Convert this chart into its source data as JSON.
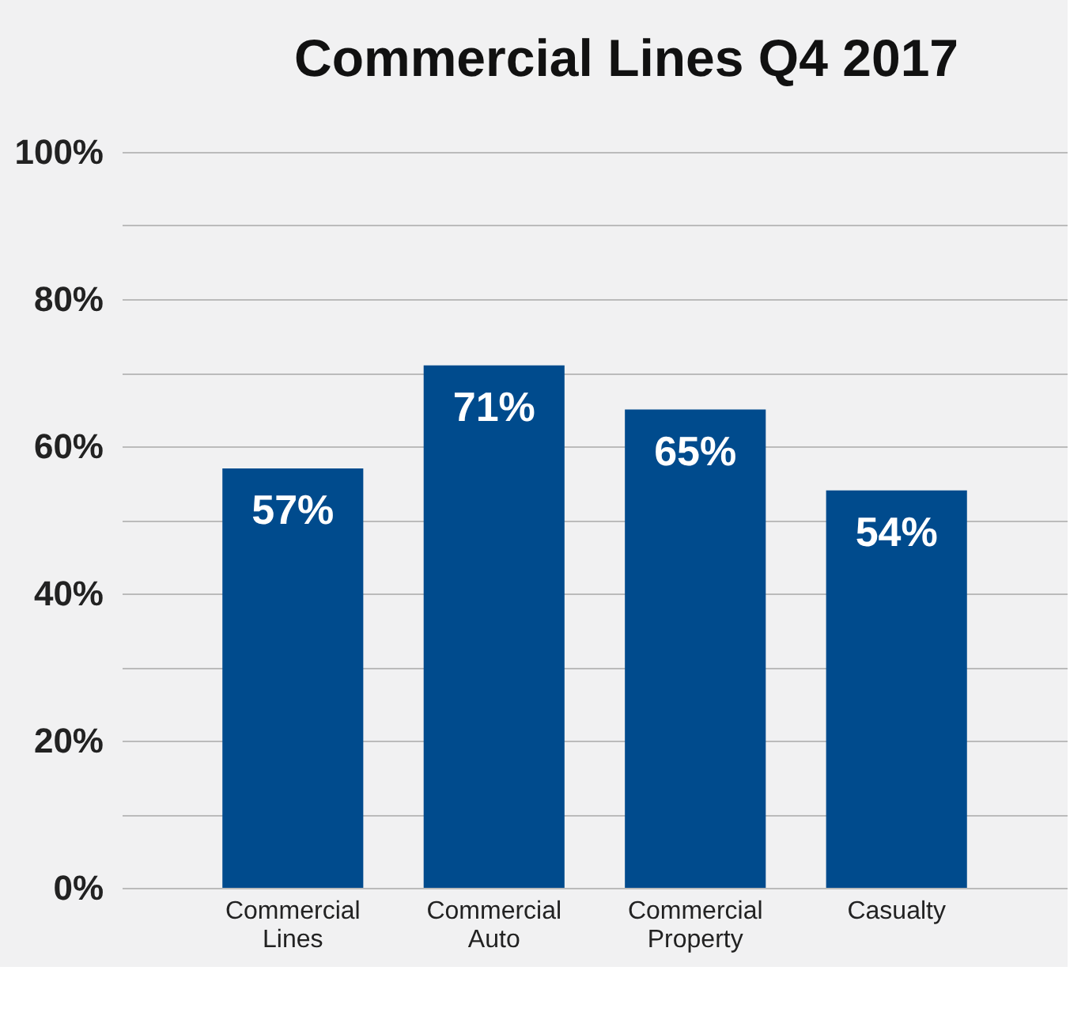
{
  "chart_data": {
    "type": "bar",
    "title": "Commercial Lines Q4 2017",
    "categories": [
      "Commercial Lines",
      "Commercial Auto",
      "Commercial Property",
      "Casualty"
    ],
    "values": [
      57,
      71,
      65,
      54
    ],
    "value_labels": [
      "57%",
      "71%",
      "65%",
      "54%"
    ],
    "color": "#004b8d",
    "ylim": [
      0,
      100
    ],
    "yticks": [
      {
        "value": 0,
        "label": "0%"
      },
      {
        "value": 10,
        "label": null
      },
      {
        "value": 20,
        "label": "20%"
      },
      {
        "value": 30,
        "label": null
      },
      {
        "value": 40,
        "label": "40%"
      },
      {
        "value": 50,
        "label": null
      },
      {
        "value": 60,
        "label": "60%"
      },
      {
        "value": 70,
        "label": null
      },
      {
        "value": 80,
        "label": "80%"
      },
      {
        "value": 90,
        "label": null
      },
      {
        "value": 100,
        "label": "100%"
      }
    ],
    "grid": "y"
  }
}
